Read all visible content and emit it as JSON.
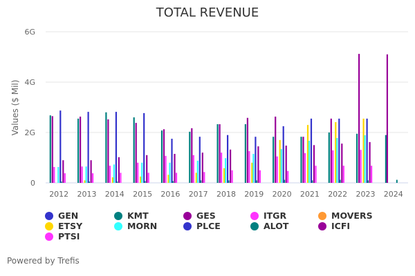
{
  "chart_data": {
    "type": "bar",
    "title": "TOTAL REVENUE",
    "xlabel": "",
    "ylabel": "Values ($ Mil)",
    "ylim": [
      0,
      6000
    ],
    "yticks": [
      0,
      2000,
      4000,
      6000
    ],
    "ytick_labels": [
      "0",
      "2G",
      "4G",
      "6G"
    ],
    "grid": true,
    "legend_position": "bottom",
    "categories": [
      "2012",
      "2013",
      "2014",
      "2015",
      "2016",
      "2017",
      "2018",
      "2019",
      "2020",
      "2021",
      "2022",
      "2023",
      "2024"
    ],
    "series": [
      {
        "name": "GEN",
        "color": "#3333cc",
        "values": [
          null,
          null,
          null,
          null,
          null,
          null,
          null,
          null,
          null,
          null,
          null,
          null,
          null
        ]
      },
      {
        "name": "KMT",
        "color": "#008080",
        "values": [
          2680,
          2550,
          2800,
          2600,
          2080,
          2030,
          2330,
          2330,
          1830,
          1830,
          2000,
          1950,
          1900
        ]
      },
      {
        "name": "GES",
        "color": "#990099",
        "values": [
          2650,
          2630,
          2520,
          2380,
          2130,
          2170,
          2330,
          2580,
          2630,
          1830,
          2550,
          5120,
          5100
        ]
      },
      {
        "name": "ITGR",
        "color": "#ff33ff",
        "values": [
          630,
          650,
          680,
          800,
          1070,
          1100,
          1200,
          1260,
          1050,
          1180,
          1290,
          1310,
          null
        ]
      },
      {
        "name": "MOVERS",
        "color": "#ff9933",
        "values": [
          null,
          null,
          null,
          null,
          null,
          null,
          null,
          null,
          null,
          null,
          null,
          null,
          null
        ]
      },
      {
        "name": "ETSY",
        "color": "#ffd700",
        "values": [
          null,
          100,
          220,
          250,
          320,
          400,
          580,
          800,
          1700,
          2300,
          2410,
          2550,
          null
        ]
      },
      {
        "name": "MORN",
        "color": "#33ffff",
        "values": [
          630,
          650,
          730,
          800,
          800,
          880,
          980,
          1150,
          1340,
          1670,
          1780,
          1890,
          null
        ]
      },
      {
        "name": "PLCE",
        "color": "#3333cc",
        "values": [
          2870,
          2820,
          2820,
          2770,
          1750,
          1830,
          1900,
          1830,
          2250,
          2550,
          2550,
          2550,
          null
        ]
      },
      {
        "name": "ALOT",
        "color": "#008080",
        "values": [
          50,
          50,
          50,
          70,
          70,
          100,
          100,
          100,
          120,
          100,
          120,
          100,
          120
        ]
      },
      {
        "name": "ICFI",
        "color": "#990099",
        "values": [
          900,
          900,
          1020,
          1100,
          1150,
          1200,
          1320,
          1450,
          1480,
          1500,
          1560,
          1620,
          null
        ]
      },
      {
        "name": "PTSI",
        "color": "#ff33ff",
        "values": [
          380,
          380,
          400,
          400,
          400,
          430,
          500,
          500,
          470,
          680,
          680,
          680,
          null
        ]
      }
    ]
  },
  "footer": {
    "powered_by": "Powered by Trefis"
  }
}
